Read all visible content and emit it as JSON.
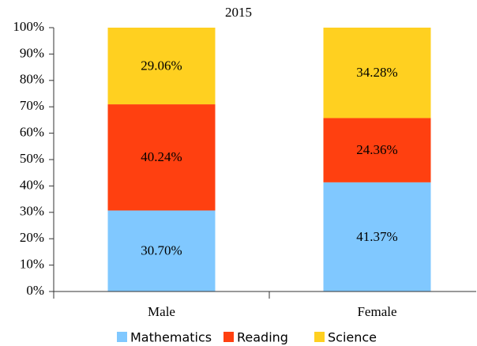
{
  "chart_data": {
    "type": "stacked_bar",
    "title": "2015",
    "categories": [
      "Male",
      "Female"
    ],
    "series": [
      {
        "name": "Mathematics",
        "color": "#80c8ff",
        "values": [
          30.7,
          41.37
        ],
        "value_labels": [
          "30.70%",
          "41.37%"
        ]
      },
      {
        "name": "Reading",
        "color": "#ff4010",
        "values": [
          40.24,
          24.36
        ],
        "value_labels": [
          "40.24%",
          "24.36%"
        ]
      },
      {
        "name": "Science",
        "color": "#ffd020",
        "values": [
          29.06,
          34.28
        ],
        "value_labels": [
          "29.06%",
          "34.28%"
        ]
      }
    ],
    "ylim": [
      0,
      100
    ],
    "yticks": [
      {
        "value": 0,
        "label": "0%"
      },
      {
        "value": 10,
        "label": "10%"
      },
      {
        "value": 20,
        "label": "20%"
      },
      {
        "value": 30,
        "label": "30%"
      },
      {
        "value": 40,
        "label": "40%"
      },
      {
        "value": 50,
        "label": "50%"
      },
      {
        "value": 60,
        "label": "60%"
      },
      {
        "value": 70,
        "label": "70%"
      },
      {
        "value": 80,
        "label": "80%"
      },
      {
        "value": 90,
        "label": "90%"
      },
      {
        "value": 100,
        "label": "100%"
      }
    ],
    "grid": false,
    "legend": "bottom"
  }
}
